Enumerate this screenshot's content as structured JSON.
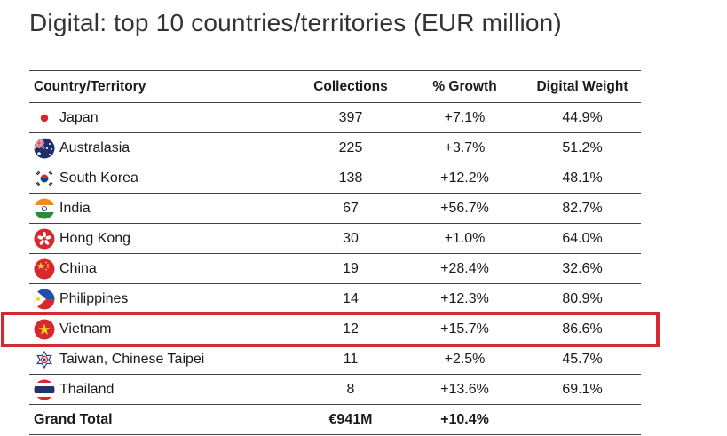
{
  "title": "Digital: top 10 countries/territories (EUR million)",
  "headers": {
    "country": "Country/Territory",
    "collections": "Collections",
    "growth": "% Growth",
    "weight": "Digital Weight"
  },
  "rows": [
    {
      "country": "Japan",
      "flag": "japan-flag-icon",
      "collections": "397",
      "growth": "+7.1%",
      "weight": "44.9%"
    },
    {
      "country": "Australasia",
      "flag": "australasia-flag-icon",
      "collections": "225",
      "growth": "+3.7%",
      "weight": "51.2%"
    },
    {
      "country": "South Korea",
      "flag": "south-korea-flag-icon",
      "collections": "138",
      "growth": "+12.2%",
      "weight": "48.1%"
    },
    {
      "country": "India",
      "flag": "india-flag-icon",
      "collections": "67",
      "growth": "+56.7%",
      "weight": "82.7%"
    },
    {
      "country": "Hong Kong",
      "flag": "hong-kong-flag-icon",
      "collections": "30",
      "growth": "+1.0%",
      "weight": "64.0%"
    },
    {
      "country": "China",
      "flag": "china-flag-icon",
      "collections": "19",
      "growth": "+28.4%",
      "weight": "32.6%"
    },
    {
      "country": "Philippines",
      "flag": "philippines-flag-icon",
      "collections": "14",
      "growth": "+12.3%",
      "weight": "80.9%"
    },
    {
      "country": "Vietnam",
      "flag": "vietnam-flag-icon",
      "collections": "12",
      "growth": "+15.7%",
      "weight": "86.6%"
    },
    {
      "country": "Taiwan, Chinese Taipei",
      "flag": "chinese-taipei-flag-icon",
      "collections": "11",
      "growth": "+2.5%",
      "weight": "45.7%"
    },
    {
      "country": "Thailand",
      "flag": "thailand-flag-icon",
      "collections": "8",
      "growth": "+13.6%",
      "weight": "69.1%"
    }
  ],
  "total": {
    "label": "Grand Total",
    "collections": "€941M",
    "growth": "+10.4%",
    "weight": ""
  },
  "highlight_color": "#d7282f",
  "highlighted_row": "Vietnam"
}
